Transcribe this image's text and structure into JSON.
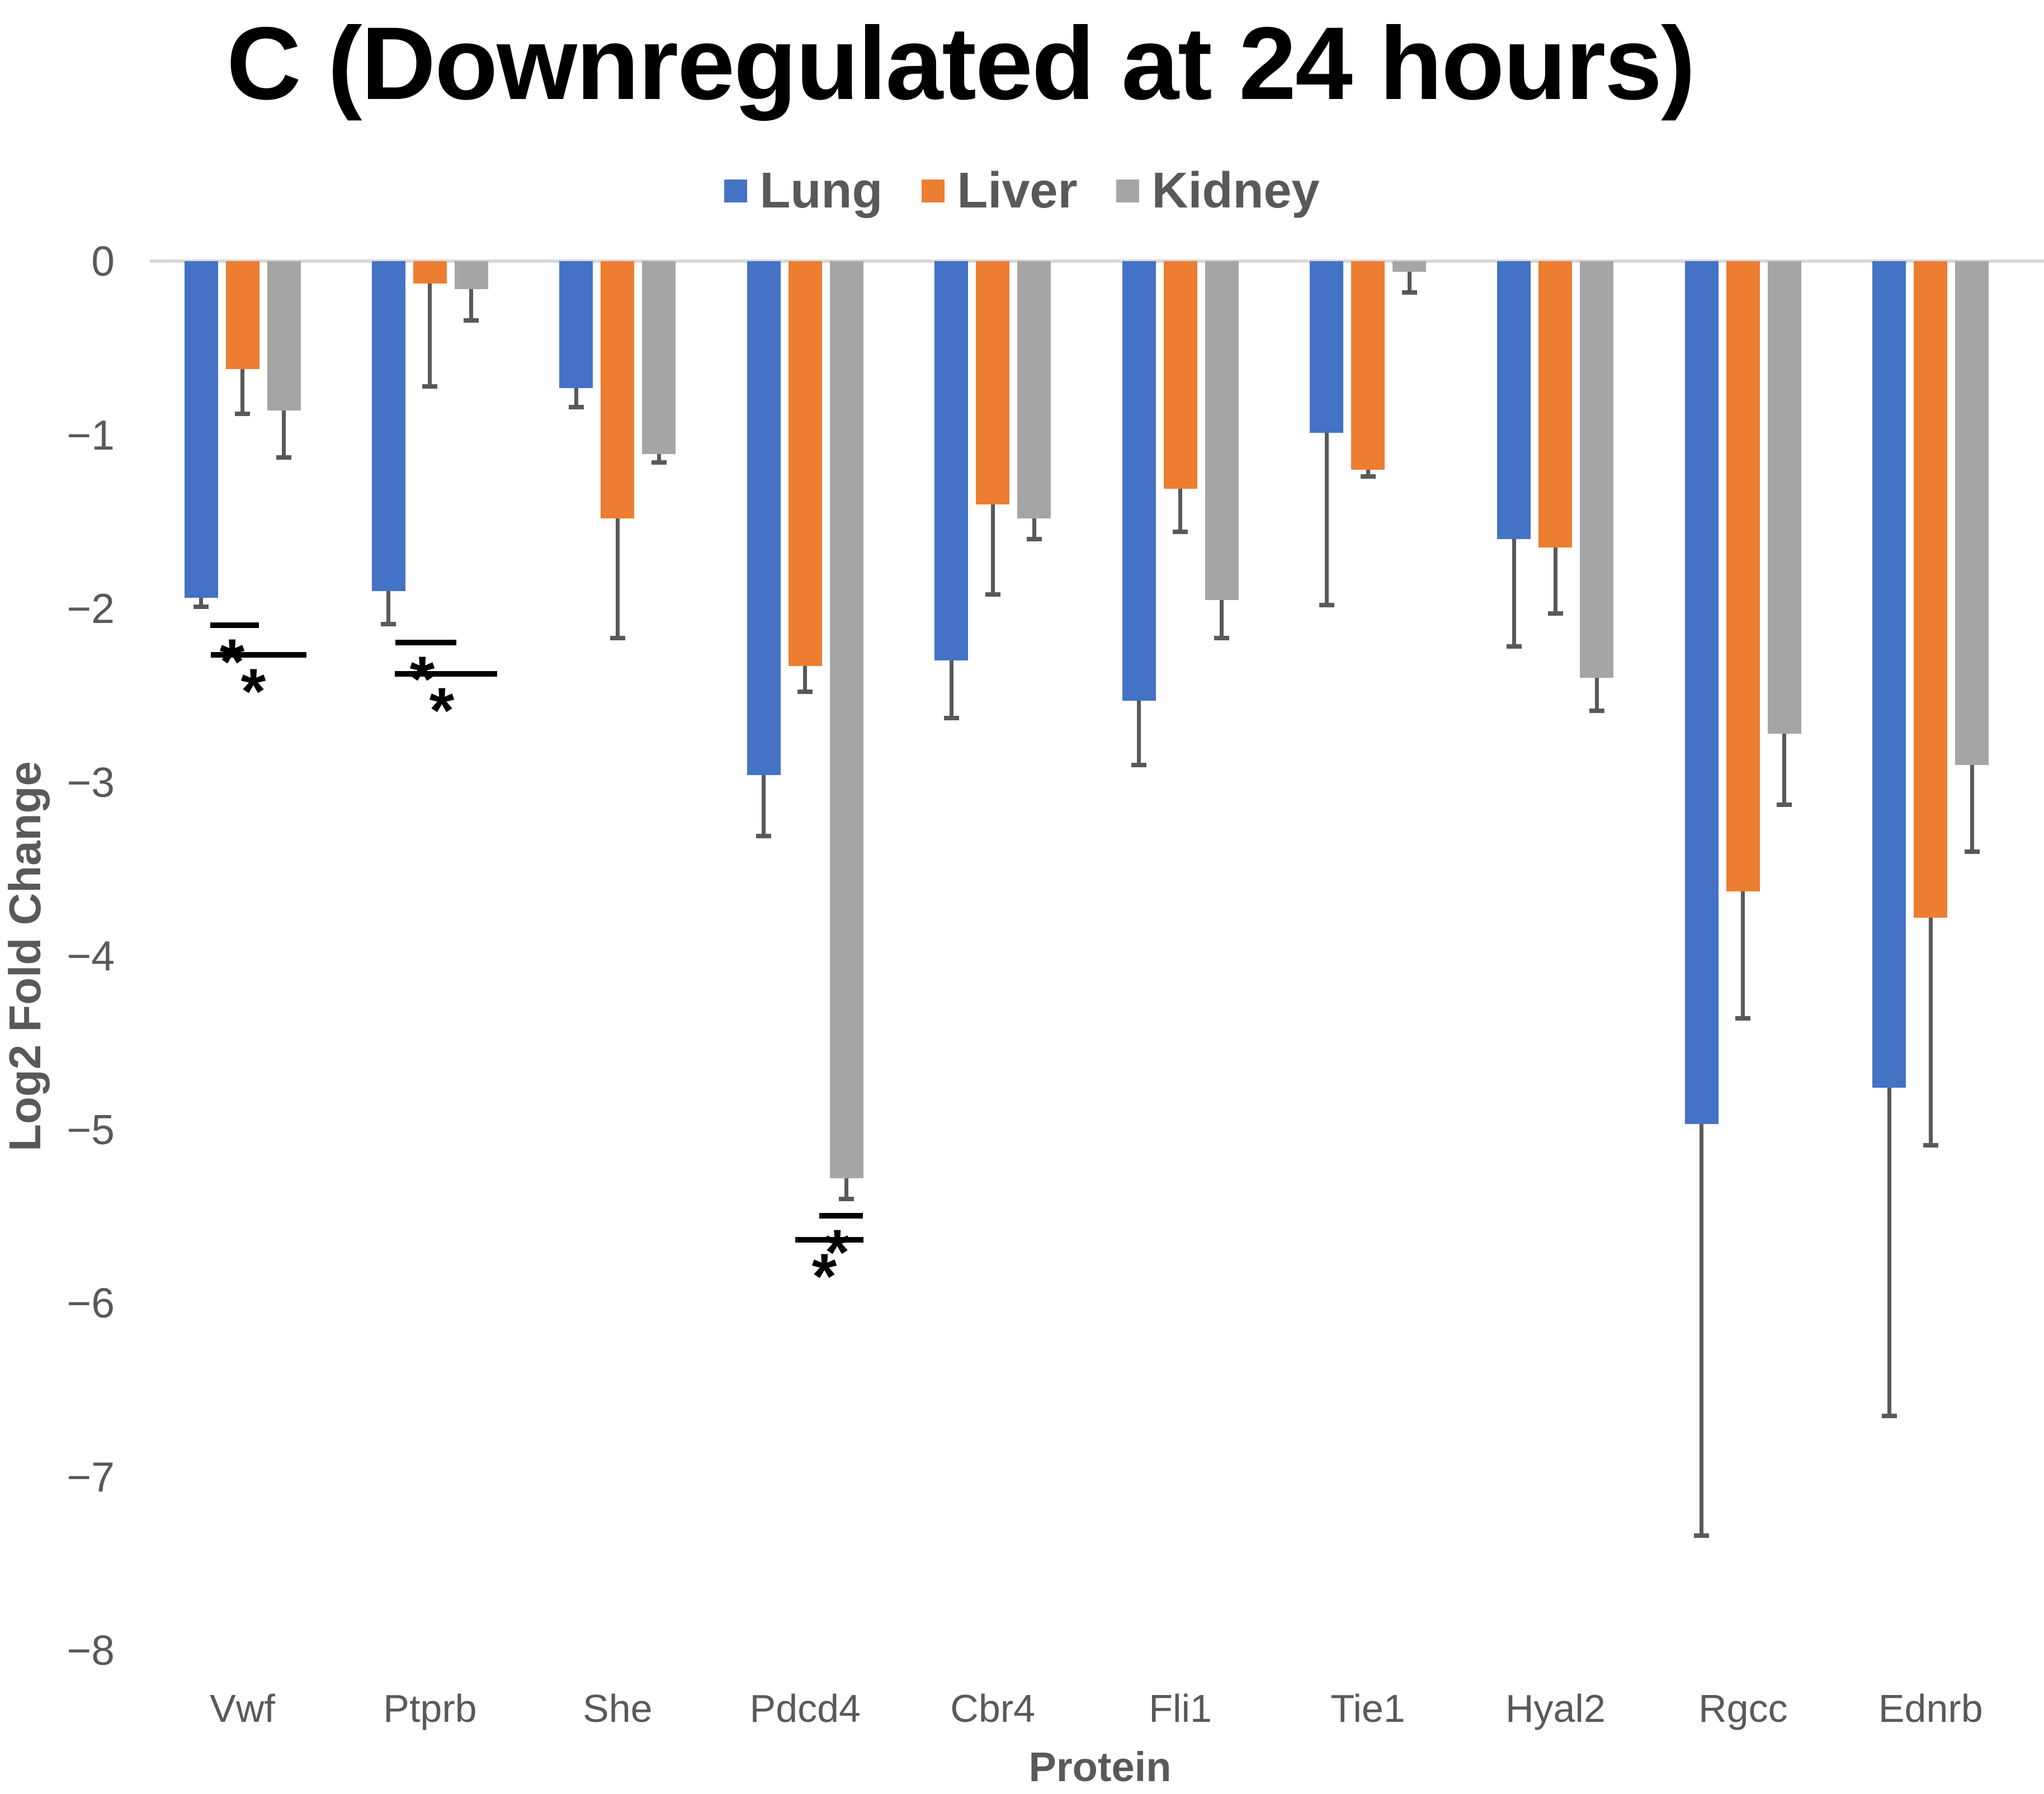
{
  "chart_data": {
    "type": "bar",
    "title": "C (Downregulated at 24 hours)",
    "xlabel": "Protein",
    "ylabel": "Log2 Fold Change",
    "ylim": [
      -8,
      0
    ],
    "grid": "zero-line-only",
    "legend_position": "top",
    "ytick_labels": [
      "0",
      "−1",
      "−2",
      "−3",
      "−4",
      "−5",
      "−6",
      "−7",
      "−8"
    ],
    "yticks": [
      0,
      -1,
      -2,
      -3,
      -4,
      -5,
      -6,
      -7,
      -8
    ],
    "categories": [
      "Vwf",
      "Ptprb",
      "She",
      "Pdcd4",
      "Cbr4",
      "Fli1",
      "Tie1",
      "Hyal2",
      "Rgcc",
      "Ednrb"
    ],
    "series": [
      {
        "name": "Lung",
        "color": "#4472C4",
        "values": [
          -1.94,
          -1.9,
          -0.73,
          -2.96,
          -2.3,
          -2.53,
          -0.99,
          -1.6,
          -4.97,
          -4.76
        ],
        "errors": [
          0.05,
          0.19,
          0.11,
          0.35,
          0.33,
          0.37,
          0.99,
          0.62,
          2.37,
          1.89
        ]
      },
      {
        "name": "Liver",
        "color": "#ED7D31",
        "values": [
          -0.62,
          -0.13,
          -1.48,
          -2.33,
          -1.4,
          -1.31,
          -1.2,
          -1.65,
          -3.63,
          -3.78
        ],
        "errors": [
          0.26,
          0.59,
          0.69,
          0.15,
          0.52,
          0.25,
          0.04,
          0.38,
          0.73,
          1.31
        ]
      },
      {
        "name": "Kidney",
        "color": "#A5A5A5",
        "values": [
          -0.86,
          -0.16,
          -1.11,
          -5.28,
          -1.48,
          -1.95,
          -0.06,
          -2.4,
          -2.72,
          -2.9
        ],
        "errors": [
          0.27,
          0.18,
          0.05,
          0.12,
          0.12,
          0.22,
          0.12,
          0.19,
          0.41,
          0.5
        ]
      }
    ],
    "error_bar_color": "#595959",
    "zero_line_color": "#D9D9D9",
    "significance_marker": "*",
    "significance": [
      {
        "category": "Vwf",
        "x1": 376,
        "x2": 463,
        "level": -2.08,
        "star_x": 415
      },
      {
        "category": "Vwf",
        "x1": 377,
        "x2": 548,
        "level": -2.25,
        "star_x": 453
      },
      {
        "category": "Ptprb",
        "x1": 707,
        "x2": 816,
        "level": -2.18,
        "star_x": 755
      },
      {
        "category": "Ptprb",
        "x1": 706,
        "x2": 889,
        "level": -2.36,
        "star_x": 790
      },
      {
        "category": "Pdcd4",
        "x1": 1465,
        "x2": 1543,
        "level": -5.48,
        "star_x": 1497
      },
      {
        "category": "Pdcd4",
        "x1": 1422,
        "x2": 1544,
        "level": -5.62,
        "star_x": 1474
      }
    ]
  }
}
